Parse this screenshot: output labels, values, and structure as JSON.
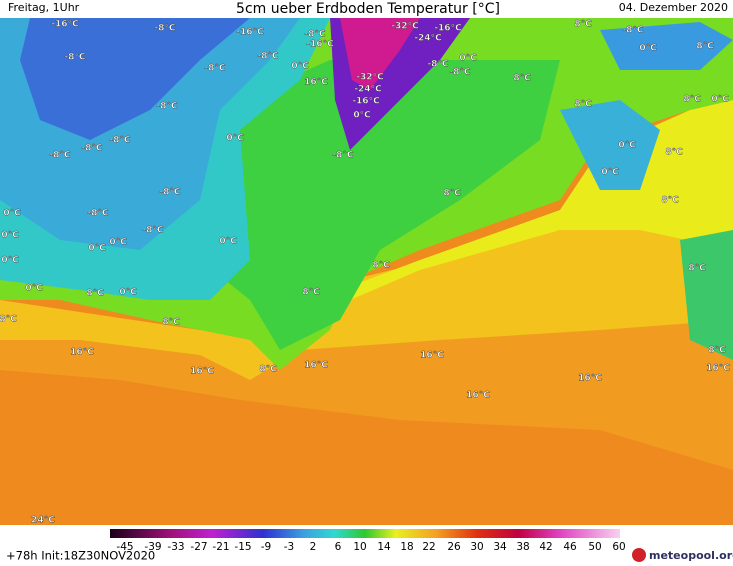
{
  "header": {
    "day": "Freitag, 1Uhr",
    "title": "5cm ueber Erdboden Temperatur [°C]",
    "date": "04. Dezember 2020"
  },
  "footer": {
    "run": "+78h  Init:18Z30NOV2020",
    "logo": "meteopool.org"
  },
  "legend": {
    "ticks": [
      -45,
      -39,
      -33,
      -27,
      -21,
      -15,
      -9,
      -3,
      2,
      6,
      10,
      14,
      18,
      22,
      26,
      30,
      34,
      38,
      42,
      46,
      50,
      60
    ]
  },
  "map": {
    "labels": [
      "-16°C",
      "-8°C",
      "-16°C",
      "-8°C",
      "-16°C",
      "-32°C",
      "-16°C",
      "-24°C",
      "8°C",
      "-8°C",
      "0°C",
      "8°C",
      "-8°C",
      "-8°C",
      "-8°C",
      "0°C",
      "0°C",
      "-8°C",
      "-8°C",
      "-32°C",
      "16°C",
      "-24°C",
      "8°C",
      "-16°C",
      "-8°C",
      "8°C",
      "8°C",
      "0°C",
      "0°C",
      "0°C",
      "-8°C",
      "-8°C",
      "-8°C",
      "-8°C",
      "0°C",
      "8°C",
      "8°C",
      "-8°C",
      "0°C",
      "8°C",
      "0°C",
      "-8°C",
      "-8°C",
      "0°C",
      "0°C",
      "0°C",
      "0°C",
      "0°C",
      "8°C",
      "8°C",
      "0°C",
      "8°C",
      "0°C",
      "8°C",
      "8°C",
      "8°C",
      "16°C",
      "16°C",
      "16°C",
      "16°C",
      "8°C",
      "8°C",
      "16°C",
      "16°C",
      "16°C",
      "24°C"
    ]
  }
}
